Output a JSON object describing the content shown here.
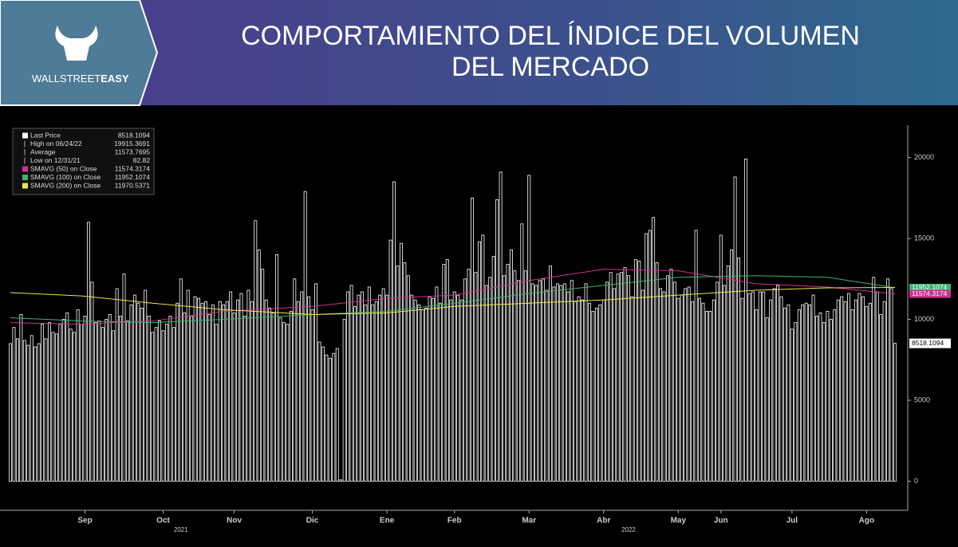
{
  "header": {
    "title_lines": [
      "COMPORTAMIENTO DEL ÍNDICE DEL VOLUMEN",
      "DEL MERCADO"
    ],
    "brand": [
      "WALLSTREET",
      "EASY"
    ]
  },
  "chart_data": {
    "type": "bar",
    "values": [
      8500,
      9500,
      8800,
      10300,
      8700,
      8400,
      9000,
      8300,
      8500,
      9700,
      8800,
      9800,
      9200,
      9100,
      9700,
      10000,
      10400,
      9400,
      9200,
      10600,
      9700,
      10200,
      16000,
      12300,
      9800,
      9900,
      9500,
      10000,
      10300,
      9300,
      11900,
      10200,
      12800,
      9900,
      10900,
      11500,
      11000,
      10700,
      11800,
      10200,
      9200,
      9500,
      9900,
      9300,
      9700,
      10200,
      9500,
      11000,
      12500,
      10400,
      11800,
      10200,
      11400,
      11300,
      11000,
      11100,
      10300,
      10900,
      9700,
      11100,
      10900,
      11100,
      11700,
      10400,
      11200,
      11600,
      10200,
      11800,
      11100,
      16100,
      14300,
      13100,
      11200,
      10700,
      10400,
      14000,
      10100,
      9800,
      9700,
      10500,
      12500,
      11100,
      11700,
      17900,
      11400,
      10600,
      12200,
      8600,
      8300,
      7800,
      7600,
      7900,
      8200,
      82.82,
      10000,
      11700,
      12100,
      10800,
      11500,
      11700,
      10900,
      12000,
      10900,
      11100,
      11500,
      11900,
      11500,
      14900,
      18500,
      13300,
      14700,
      13500,
      12700,
      11500,
      11200,
      10900,
      10600,
      10700,
      11400,
      11300,
      12000,
      11000,
      13400,
      13700,
      11200,
      11700,
      11500,
      11200,
      12500,
      13100,
      17500,
      12900,
      14800,
      15200,
      12100,
      12600,
      13900,
      17400,
      19100,
      12700,
      13400,
      14300,
      13000,
      12400,
      15900,
      13000,
      18900,
      12200,
      12100,
      12400,
      12500,
      11800,
      13300,
      12000,
      12200,
      12100,
      12200,
      11700,
      12400,
      11100,
      11400,
      11200,
      12200,
      11000,
      10500,
      10700,
      10900,
      11200,
      12300,
      12900,
      11900,
      12800,
      12900,
      13200,
      12700,
      11400,
      13700,
      13600,
      11800,
      15300,
      15500,
      16300,
      13500,
      11900,
      11700,
      12700,
      13100,
      12300,
      11300,
      11500,
      11900,
      12000,
      11100,
      15500,
      11300,
      11000,
      10500,
      10500,
      11200,
      12300,
      15200,
      12100,
      13300,
      14300,
      18800,
      13800,
      11300,
      19915.3691,
      11600,
      11700,
      10600,
      11700,
      11700,
      10100,
      11200,
      11900,
      12100,
      11400,
      10700,
      10900,
      9400,
      9800,
      10600,
      10900,
      11000,
      10900,
      11500,
      10200,
      10400,
      9800,
      10500,
      10000,
      10600,
      11200,
      11400,
      11100,
      11600,
      10600,
      11200,
      11600,
      11400,
      10800,
      11000,
      12600,
      11700,
      10300,
      11100,
      12500,
      11900,
      8518.1094
    ],
    "color": "#ffffff",
    "lines": [
      {
        "name": "SMAVG (50)  on Close",
        "color": "#d0308f",
        "x": [
          0,
          20,
          40,
          60,
          85,
          106,
          125,
          146,
          167,
          188,
          210,
          230,
          249
        ],
        "values": [
          9800,
          9700,
          9900,
          10500,
          10800,
          11300,
          11500,
          12400,
          13100,
          13000,
          12200,
          12000,
          11574.3174
        ]
      },
      {
        "name": "SMAVG (100)  on Close",
        "color": "#3cb371",
        "x": [
          0,
          20,
          40,
          60,
          85,
          106,
          125,
          146,
          167,
          188,
          210,
          230,
          249
        ],
        "values": [
          10100,
          9900,
          9800,
          10000,
          10300,
          10500,
          11000,
          11600,
          12100,
          12600,
          12700,
          12600,
          11952.1074
        ]
      },
      {
        "name": "SMAVG (200)  on Close",
        "color": "#e8e84a",
        "x": [
          0,
          20,
          40,
          60,
          85,
          106,
          125,
          146,
          167,
          188,
          210,
          230,
          249
        ],
        "values": [
          11650,
          11450,
          11000,
          10600,
          10300,
          10400,
          10800,
          11000,
          11200,
          11500,
          11800,
          11950,
          11970.5371
        ]
      }
    ],
    "legend_labels": [
      "Last Price",
      "High on 06/24/22",
      "Average",
      "Low on 12/31/21"
    ],
    "average": 11573.7695,
    "ylim": [
      -1800,
      22000
    ],
    "yticks": [
      0,
      5000,
      10000,
      15000,
      20000
    ],
    "xlim": [
      0,
      249
    ],
    "xticks": [
      {
        "value": 21,
        "label": "Sep"
      },
      {
        "value": 43,
        "label": "Oct"
      },
      {
        "value": 63,
        "label": "Nov"
      },
      {
        "value": 85,
        "label": "Dic"
      },
      {
        "value": 106,
        "label": "Ene"
      },
      {
        "value": 125,
        "label": "Feb"
      },
      {
        "value": 146,
        "label": "Mar"
      },
      {
        "value": 167,
        "label": "Abr"
      },
      {
        "value": 188,
        "label": "May"
      },
      {
        "value": 200,
        "label": "Jun"
      },
      {
        "value": 220,
        "label": "Jul"
      },
      {
        "value": 241,
        "label": "Ago"
      }
    ],
    "year_ticks": [
      {
        "value": 48,
        "label": "2021"
      },
      {
        "value": 174,
        "label": "2022"
      }
    ]
  }
}
